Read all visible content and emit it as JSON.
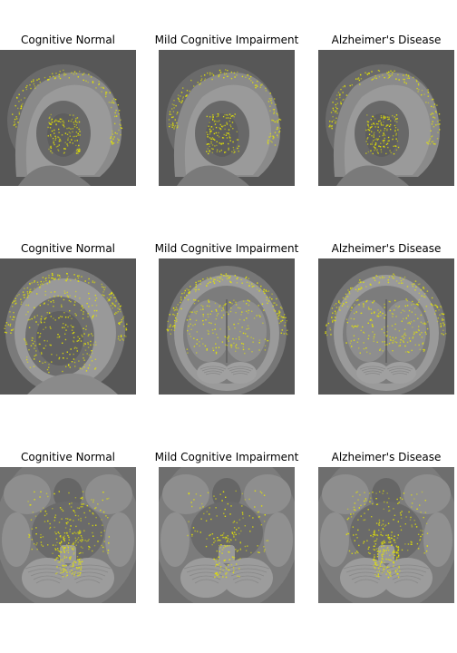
{
  "figure": {
    "rows": [
      {
        "view": "sagittal",
        "panels": [
          {
            "title": "Cognitive Normal",
            "highlight_color": "#e6e600"
          },
          {
            "title": "Mild Cognitive Impairment",
            "highlight_color": "#e6e600"
          },
          {
            "title": "Alzheimer's Disease",
            "highlight_color": "#e6e600"
          }
        ]
      },
      {
        "view": "coronal",
        "panels": [
          {
            "title": "Cognitive Normal",
            "highlight_color": "#e6e600"
          },
          {
            "title": "Mild Cognitive Impairment",
            "highlight_color": "#e6e600"
          },
          {
            "title": "Alzheimer's Disease",
            "highlight_color": "#e6e600"
          }
        ]
      },
      {
        "view": "axial",
        "panels": [
          {
            "title": "Cognitive Normal",
            "highlight_color": "#e6e600"
          },
          {
            "title": "Mild Cognitive Impairment",
            "highlight_color": "#e6e600"
          },
          {
            "title": "Alzheimer's Disease",
            "highlight_color": "#e6e600"
          }
        ]
      }
    ]
  }
}
